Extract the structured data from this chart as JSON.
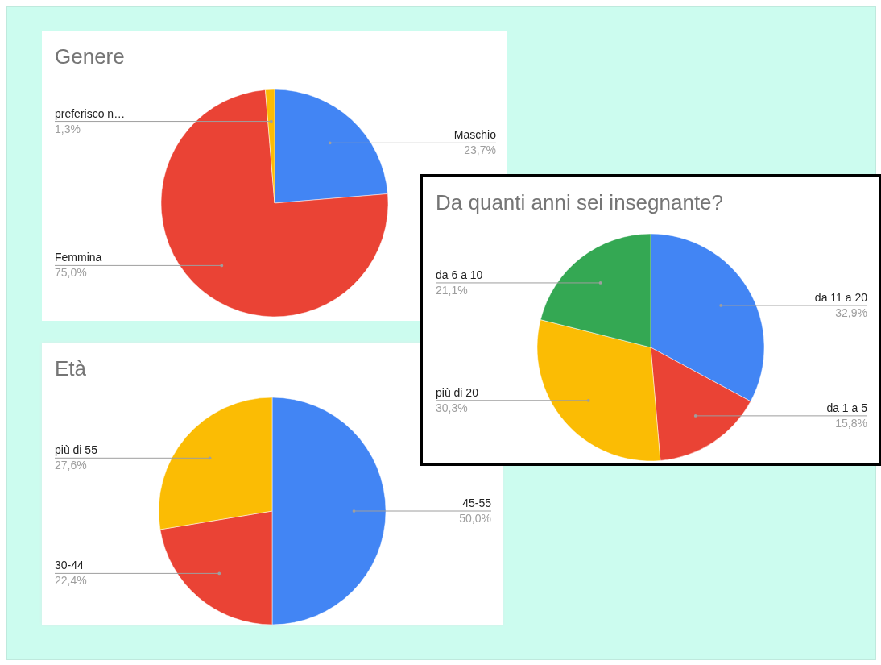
{
  "chart_data": [
    {
      "type": "pie",
      "title": "Genere",
      "categories": [
        "Maschio",
        "Femmina",
        "preferisco n…"
      ],
      "values": [
        23.7,
        75.0,
        1.3
      ],
      "colors": [
        "#4285f4",
        "#ea4335",
        "#fbbc04"
      ],
      "value_labels": [
        "23,7%",
        "75,0%",
        "1,3%"
      ]
    },
    {
      "type": "pie",
      "title": "Età",
      "categories": [
        "45-55",
        "30-44",
        "più di 55"
      ],
      "values": [
        50.0,
        22.4,
        27.6
      ],
      "colors": [
        "#4285f4",
        "#ea4335",
        "#fbbc04"
      ],
      "value_labels": [
        "50,0%",
        "22,4%",
        "27,6%"
      ]
    },
    {
      "type": "pie",
      "title": "Da quanti anni sei insegnante?",
      "categories": [
        "da 11 a 20",
        "da 1 a 5",
        "più di 20",
        "da 6 a 10"
      ],
      "values": [
        32.9,
        15.8,
        30.3,
        21.1
      ],
      "colors": [
        "#4285f4",
        "#ea4335",
        "#fbbc04",
        "#34a853"
      ],
      "value_labels": [
        "32,9%",
        "15,8%",
        "30,3%",
        "21,1%"
      ]
    }
  ]
}
